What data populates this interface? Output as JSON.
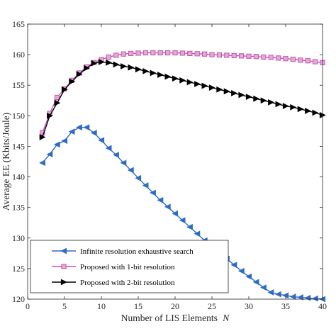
{
  "chart_data": {
    "type": "line",
    "xlabel": "Number of LIS Elements",
    "xlabel_var": "N",
    "ylabel": "Average EE (Kbits/Joule)",
    "xlim": [
      0,
      40
    ],
    "ylim": [
      120,
      165
    ],
    "x_ticks": [
      0,
      5,
      10,
      15,
      20,
      25,
      30,
      35,
      40
    ],
    "y_ticks": [
      120,
      125,
      130,
      135,
      140,
      145,
      150,
      155,
      160,
      165
    ],
    "grid": false,
    "legend_position": "bottom-left",
    "x": [
      2,
      3,
      4,
      5,
      6,
      7,
      8,
      9,
      10,
      11,
      12,
      13,
      14,
      15,
      16,
      17,
      18,
      19,
      20,
      21,
      22,
      23,
      24,
      25,
      26,
      27,
      28,
      29,
      30,
      31,
      32,
      33,
      34,
      35,
      36,
      37,
      38,
      39,
      40
    ],
    "series": [
      {
        "name": "Infinite resolution exhaustive search",
        "color": "#2e6bc7",
        "marker": "triangle-left",
        "values": [
          142.3,
          143.7,
          145.3,
          145.9,
          147.4,
          148.1,
          148.1,
          147.2,
          146.0,
          144.7,
          143.6,
          142.3,
          141.1,
          139.8,
          138.6,
          137.4,
          136.2,
          135.1,
          134.0,
          132.9,
          131.8,
          130.7,
          129.6,
          128.6,
          127.6,
          126.6,
          125.6,
          124.6,
          123.7,
          122.8,
          121.9,
          121.1,
          120.8,
          120.6,
          120.4,
          120.3,
          120.2,
          120.1,
          120.0
        ]
      },
      {
        "name": "Proposed with 1-bit resolution",
        "color": "#c056a8",
        "marker": "square",
        "values": [
          147.2,
          150.4,
          153.0,
          154.4,
          155.8,
          157.0,
          158.0,
          158.7,
          159.2,
          159.6,
          159.9,
          160.1,
          160.2,
          160.25,
          160.3,
          160.3,
          160.3,
          160.3,
          160.3,
          160.25,
          160.2,
          160.15,
          160.1,
          160.0,
          159.95,
          159.9,
          159.85,
          159.8,
          159.75,
          159.7,
          159.6,
          159.55,
          159.45,
          159.35,
          159.25,
          159.1,
          159.0,
          158.85,
          158.7
        ]
      },
      {
        "name": "Proposed with 2-bit resolution",
        "color": "#000000",
        "marker": "triangle-right",
        "values": [
          146.5,
          150.0,
          152.1,
          154.3,
          155.6,
          156.8,
          157.8,
          158.6,
          158.8,
          158.7,
          158.4,
          158.1,
          157.9,
          157.6,
          157.3,
          157.0,
          156.7,
          156.4,
          156.1,
          155.8,
          155.5,
          155.2,
          154.9,
          154.6,
          154.3,
          154.0,
          153.7,
          153.4,
          153.1,
          152.8,
          152.5,
          152.2,
          151.9,
          151.6,
          151.4,
          151.1,
          150.8,
          150.5,
          150.1
        ]
      }
    ]
  }
}
